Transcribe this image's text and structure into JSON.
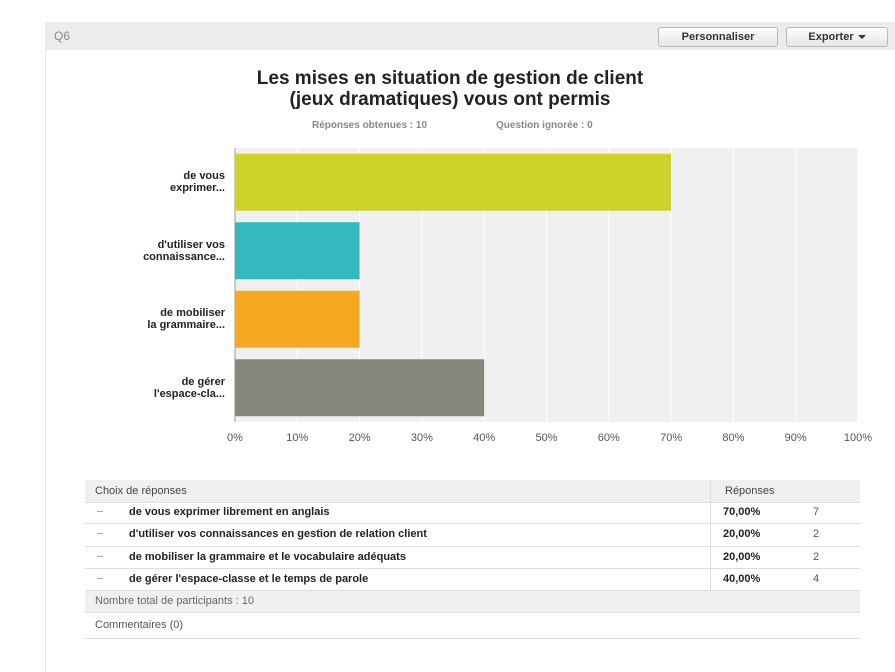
{
  "question": "Q6",
  "buttons": {
    "customize": "Personnaliser",
    "export": "Exporter"
  },
  "chart_data": {
    "type": "hbar",
    "title": "Les mises en situation de gestion de client\n(jeux dramatiques) vous ont permis",
    "subtitle": {
      "answered": "Réponses obtenues : 10",
      "skipped": "Question ignorée : 0"
    },
    "categories": [
      "de vous\nexprimer...",
      "d'utiliser vos\nconnaissance...",
      "de mobiliser\nla grammaire...",
      "de gérer\nl'espace-cla..."
    ],
    "values": [
      70,
      20,
      20,
      40
    ],
    "colors": [
      "#cdd32a",
      "#35b8c0",
      "#f6a91f",
      "#86877a"
    ],
    "xlim": [
      0,
      100
    ],
    "xticks": [
      {
        "value": 0,
        "label": "0%"
      },
      {
        "value": 10,
        "label": "10%"
      },
      {
        "value": 20,
        "label": "20%"
      },
      {
        "value": 30,
        "label": "30%"
      },
      {
        "value": 40,
        "label": "40%"
      },
      {
        "value": 50,
        "label": "50%"
      },
      {
        "value": 60,
        "label": "60%"
      },
      {
        "value": 70,
        "label": "70%"
      },
      {
        "value": 80,
        "label": "80%"
      },
      {
        "value": 90,
        "label": "90%"
      },
      {
        "value": 100,
        "label": "100%"
      }
    ],
    "grid": true
  },
  "table": {
    "header": {
      "choice": "Choix de réponses",
      "responses": "Réponses"
    },
    "rows": [
      {
        "choice": "de vous exprimer librement en anglais",
        "percent": "70,00%",
        "count": 7
      },
      {
        "choice": "d'utiliser vos connaissances en gestion de relation client",
        "percent": "20,00%",
        "count": 2
      },
      {
        "choice": "de mobiliser la grammaire et le vocabulaire adéquats",
        "percent": "20,00%",
        "count": 2
      },
      {
        "choice": "de gérer l'espace-classe et le temps de parole",
        "percent": "40,00%",
        "count": 4
      }
    ],
    "total": "Nombre total de participants : 10",
    "comments": "Commentaires (0)"
  }
}
